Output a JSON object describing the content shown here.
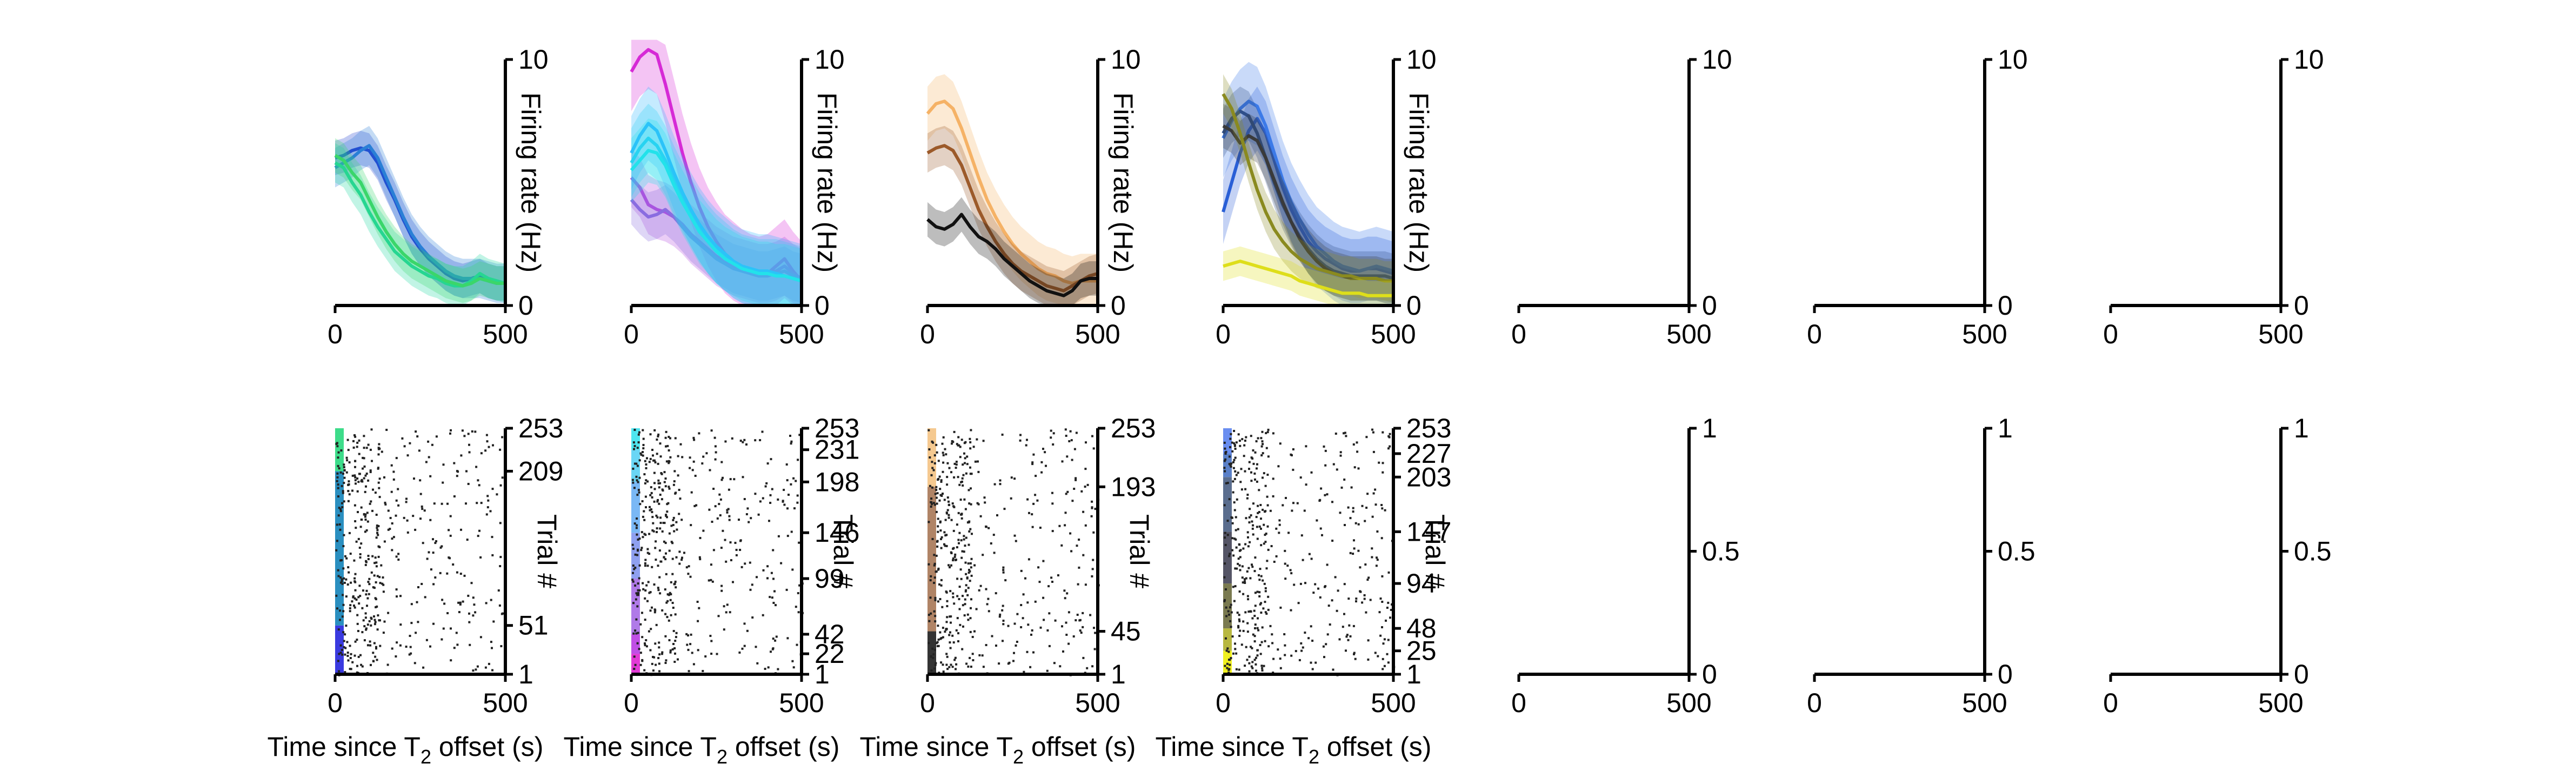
{
  "chart_data": {
    "xlabel_parts": {
      "pre": "Time since T",
      "sub": "2",
      "post": " offset (s)"
    },
    "psth_ylabel": "Firing rate (Hz)",
    "raster_ylabel": "Trial #",
    "xlim": [
      0,
      500
    ],
    "x_ticks": [
      "0",
      "500"
    ],
    "psth_ylim": [
      0,
      10
    ],
    "psth_y_ticks": [
      "0",
      "10"
    ],
    "raster_empty_y_ticks": [
      "0",
      "0.5",
      "1"
    ],
    "x": [
      0,
      25,
      50,
      75,
      100,
      125,
      150,
      175,
      200,
      225,
      250,
      275,
      300,
      325,
      350,
      375,
      400,
      425,
      450,
      475,
      500
    ],
    "panels": [
      {
        "type": "line",
        "series": [
          {
            "color": "#1f3fcf",
            "values": [
              6.0,
              6.1,
              6.3,
              6.4,
              6.3,
              5.8,
              5.0,
              4.3,
              3.5,
              2.8,
              2.3,
              1.9,
              1.6,
              1.3,
              1.1,
              1.0,
              1.1,
              1.2,
              1.0,
              0.9,
              0.9
            ],
            "err": 0.7
          },
          {
            "color": "#2a7fd6",
            "values": [
              5.6,
              5.8,
              6.0,
              6.3,
              6.5,
              6.0,
              5.2,
              4.4,
              3.6,
              2.9,
              2.4,
              2.0,
              1.7,
              1.4,
              1.2,
              1.1,
              1.1,
              1.1,
              1.0,
              0.9,
              0.9
            ],
            "err": 0.8
          },
          {
            "color": "#1fd6a0",
            "values": [
              5.8,
              5.6,
              5.0,
              4.5,
              3.8,
              3.2,
              2.7,
              2.2,
              1.9,
              1.6,
              1.4,
              1.2,
              1.1,
              0.9,
              0.8,
              0.8,
              1.0,
              1.3,
              1.1,
              1.0,
              0.9
            ],
            "err": 0.8
          },
          {
            "color": "#3ad66a",
            "values": [
              6.1,
              5.9,
              5.4,
              5.0,
              4.3,
              3.6,
              3.0,
              2.5,
              2.1,
              1.8,
              1.6,
              1.4,
              1.2,
              1.0,
              0.9,
              0.8,
              0.9,
              1.1,
              1.0,
              0.9,
              0.9
            ],
            "err": 0.7
          }
        ],
        "raster": {
          "y_ticks": [
            "1",
            "51",
            "209",
            "253"
          ],
          "tick_pos": [
            1,
            51,
            209,
            253
          ],
          "n_trials": 253,
          "groups": [
            {
              "from": 1,
              "to": 51,
              "color": "#3a3ae0"
            },
            {
              "from": 51,
              "to": 209,
              "color": "#2a8fc0"
            },
            {
              "from": 209,
              "to": 253,
              "color": "#3ddc8a"
            }
          ]
        }
      },
      {
        "type": "line",
        "series": [
          {
            "color": "#d62ad6",
            "values": [
              9.5,
              10.1,
              10.4,
              10.2,
              9.0,
              7.6,
              6.2,
              5.0,
              4.0,
              3.2,
              2.6,
              2.1,
              1.8,
              1.5,
              1.3,
              1.2,
              1.3,
              1.6,
              1.9,
              1.4,
              1.0
            ],
            "err": 1.6
          },
          {
            "color": "#b44de0",
            "values": [
              5.2,
              4.8,
              4.1,
              3.9,
              3.8,
              3.6,
              3.3,
              2.9,
              2.6,
              2.3,
              2.0,
              1.8,
              1.6,
              1.5,
              1.4,
              1.3,
              1.3,
              1.4,
              1.6,
              1.3,
              1.1
            ],
            "err": 1.2
          },
          {
            "color": "#8a6ce0",
            "values": [
              4.3,
              3.9,
              3.6,
              3.7,
              3.9,
              3.6,
              3.2,
              2.8,
              2.5,
              2.2,
              1.9,
              1.7,
              1.5,
              1.4,
              1.3,
              1.2,
              1.2,
              1.3,
              1.4,
              1.2,
              1.1
            ],
            "err": 1.0
          },
          {
            "color": "#2ad6f0",
            "values": [
              5.8,
              6.4,
              6.8,
              6.5,
              5.9,
              5.1,
              4.4,
              3.8,
              3.2,
              2.7,
              2.3,
              2.0,
              1.7,
              1.5,
              1.4,
              1.3,
              1.3,
              1.3,
              1.2,
              1.1,
              1.0
            ],
            "err": 1.4
          },
          {
            "color": "#30b8ff",
            "values": [
              6.2,
              6.9,
              7.4,
              7.1,
              6.3,
              5.4,
              4.6,
              3.9,
              3.3,
              2.8,
              2.4,
              2.1,
              1.8,
              1.6,
              1.5,
              1.4,
              1.4,
              1.3,
              1.2,
              1.1,
              1.0
            ],
            "err": 1.5
          },
          {
            "color": "#22e2ea",
            "values": [
              5.5,
              5.9,
              6.3,
              6.2,
              5.7,
              4.9,
              4.2,
              3.6,
              3.0,
              2.6,
              2.2,
              1.9,
              1.7,
              1.5,
              1.4,
              1.3,
              1.3,
              1.2,
              1.2,
              1.1,
              1.0
            ],
            "err": 1.3
          }
        ],
        "raster": {
          "y_ticks": [
            "1",
            "22",
            "42",
            "99",
            "146",
            "198",
            "231",
            "253"
          ],
          "tick_pos": [
            1,
            22,
            42,
            99,
            146,
            198,
            231,
            253
          ],
          "n_trials": 253,
          "groups": [
            {
              "from": 1,
              "to": 22,
              "color": "#e23ad6"
            },
            {
              "from": 22,
              "to": 42,
              "color": "#c04fe6"
            },
            {
              "from": 42,
              "to": 99,
              "color": "#b07ae8"
            },
            {
              "from": 99,
              "to": 146,
              "color": "#8fa0f0"
            },
            {
              "from": 146,
              "to": 198,
              "color": "#7ab8f5"
            },
            {
              "from": 198,
              "to": 231,
              "color": "#6ad6f5"
            },
            {
              "from": 231,
              "to": 253,
              "color": "#4ee6f0"
            }
          ]
        }
      },
      {
        "type": "line",
        "series": [
          {
            "color": "#f5b266",
            "values": [
              7.8,
              8.2,
              8.3,
              8.0,
              7.2,
              6.2,
              5.2,
              4.3,
              3.6,
              3.0,
              2.5,
              2.1,
              1.8,
              1.5,
              1.3,
              1.2,
              1.0,
              0.9,
              1.0,
              1.0,
              1.0
            ],
            "err": 1.1
          },
          {
            "color": "#9c5a2a",
            "values": [
              6.2,
              6.4,
              6.5,
              6.3,
              5.7,
              4.8,
              3.9,
              3.2,
              2.6,
              2.1,
              1.7,
              1.4,
              1.2,
              1.0,
              0.8,
              0.7,
              0.6,
              0.8,
              1.0,
              1.2,
              1.3
            ],
            "err": 0.8
          },
          {
            "color": "#111111",
            "values": [
              3.5,
              3.2,
              3.1,
              3.3,
              3.7,
              3.2,
              2.8,
              2.6,
              2.3,
              1.9,
              1.6,
              1.3,
              1.0,
              0.8,
              0.6,
              0.5,
              0.4,
              0.6,
              1.0,
              1.1,
              1.1
            ],
            "err": 0.7
          }
        ],
        "raster": {
          "y_ticks": [
            "1",
            "45",
            "193",
            "253"
          ],
          "tick_pos": [
            1,
            45,
            193,
            253
          ],
          "n_trials": 253,
          "groups": [
            {
              "from": 1,
              "to": 45,
              "color": "#333333"
            },
            {
              "from": 45,
              "to": 193,
              "color": "#b08466"
            },
            {
              "from": 193,
              "to": 253,
              "color": "#f5c990"
            }
          ]
        }
      },
      {
        "type": "line",
        "series": [
          {
            "color": "#2a5fd6",
            "values": [
              3.8,
              5.0,
              6.2,
              7.1,
              7.6,
              7.0,
              5.9,
              4.8,
              3.9,
              3.2,
              2.6,
              2.2,
              1.9,
              1.7,
              1.5,
              1.4,
              1.4,
              1.5,
              1.5,
              1.4,
              1.3
            ],
            "err": 1.3
          },
          {
            "color": "#3c7ae8",
            "values": [
              6.8,
              7.5,
              8.0,
              8.3,
              8.1,
              7.3,
              6.2,
              5.1,
              4.2,
              3.5,
              2.9,
              2.4,
              2.1,
              1.8,
              1.6,
              1.5,
              1.4,
              1.5,
              1.6,
              1.5,
              1.4
            ],
            "err": 1.6
          },
          {
            "color": "#2f4f8a",
            "values": [
              7.0,
              7.6,
              7.9,
              7.7,
              7.0,
              6.0,
              5.0,
              4.1,
              3.4,
              2.8,
              2.3,
              1.9,
              1.6,
              1.4,
              1.3,
              1.2,
              1.2,
              1.2,
              1.2,
              1.2,
              1.1
            ],
            "err": 1.0
          },
          {
            "color": "#3a3a3a",
            "values": [
              7.3,
              7.1,
              6.6,
              6.9,
              6.7,
              6.0,
              5.1,
              4.2,
              3.4,
              2.7,
              2.2,
              1.8,
              1.5,
              1.3,
              1.2,
              1.1,
              1.1,
              1.1,
              1.1,
              1.0,
              1.0
            ],
            "err": 0.9
          },
          {
            "color": "#8a8a1f",
            "values": [
              8.6,
              8.0,
              7.0,
              5.8,
              4.7,
              3.8,
              3.1,
              2.6,
              2.2,
              1.9,
              1.7,
              1.5,
              1.4,
              1.3,
              1.2,
              1.2,
              1.1,
              1.1,
              1.1,
              1.0,
              1.0
            ],
            "err": 0.8
          },
          {
            "color": "#dede1a",
            "values": [
              1.6,
              1.7,
              1.8,
              1.7,
              1.6,
              1.5,
              1.4,
              1.3,
              1.2,
              1.0,
              0.9,
              0.8,
              0.7,
              0.6,
              0.5,
              0.5,
              0.5,
              0.4,
              0.4,
              0.4,
              0.4
            ],
            "err": 0.6
          }
        ],
        "raster": {
          "y_ticks": [
            "1",
            "25",
            "48",
            "94",
            "147",
            "203",
            "227",
            "253"
          ],
          "tick_pos": [
            1,
            25,
            48,
            94,
            147,
            203,
            227,
            253
          ],
          "n_trials": 253,
          "groups": [
            {
              "from": 1,
              "to": 25,
              "color": "#f0f020"
            },
            {
              "from": 25,
              "to": 48,
              "color": "#b8b840"
            },
            {
              "from": 48,
              "to": 94,
              "color": "#7a7a50"
            },
            {
              "from": 94,
              "to": 147,
              "color": "#555566"
            },
            {
              "from": 147,
              "to": 203,
              "color": "#5a6d8e"
            },
            {
              "from": 203,
              "to": 227,
              "color": "#5a80c8"
            },
            {
              "from": 227,
              "to": 253,
              "color": "#6a8ef0"
            }
          ]
        }
      },
      {
        "type": "empty"
      },
      {
        "type": "empty"
      },
      {
        "type": "empty"
      }
    ]
  }
}
